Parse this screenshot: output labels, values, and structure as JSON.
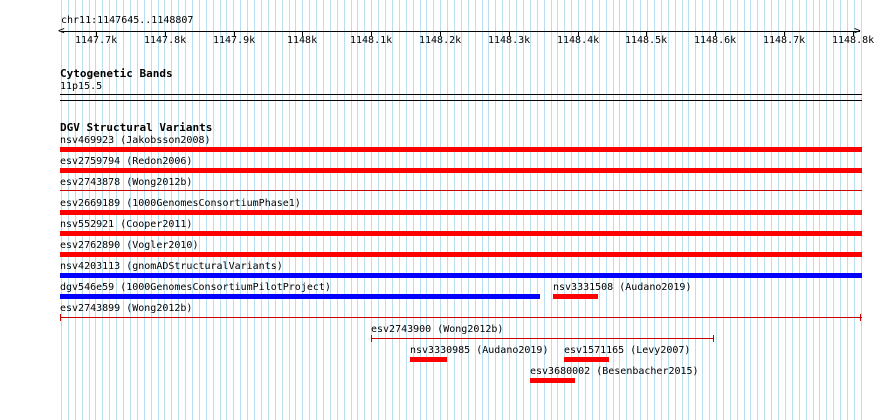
{
  "ruler": {
    "position": "chr11:1147645..1148807",
    "ticks": [
      "1147.7k",
      "1147.8k",
      "1147.9k",
      "1148k",
      "1148.1k",
      "1148.2k",
      "1148.3k",
      "1148.4k",
      "1148.5k",
      "1148.6k",
      "1148.7k",
      "1148.8k"
    ]
  },
  "cytobands": {
    "title": "Cytogenetic Bands",
    "band": "11p15.5"
  },
  "dgv": {
    "title": "DGV Structural Variants",
    "features": [
      {
        "label": "nsv469923 (Jakobsson2008)",
        "color": "#ff0000"
      },
      {
        "label": "esv2759794 (Redon2006)",
        "color": "#ff0000"
      },
      {
        "label": "esv2743878 (Wong2012b)",
        "color": "#cc0000"
      },
      {
        "label": "esv2669189 (1000GenomesConsortiumPhase1)",
        "color": "#ff0000"
      },
      {
        "label": "nsv552921 (Cooper2011)",
        "color": "#ff0000"
      },
      {
        "label": "esv2762890 (Vogler2010)",
        "color": "#ff0000"
      },
      {
        "label": "nsv4203113 (gnomADStructuralVariants)",
        "color": "#0000ff"
      },
      {
        "label": "dgv546e59 (1000GenomesConsortiumPilotProject)",
        "color": "#0000ff"
      },
      {
        "label": "nsv3331508 (Audano2019)",
        "color": "#ff0000"
      },
      {
        "label": "esv2743899 (Wong2012b)",
        "color": "#cc0000"
      },
      {
        "label": "esv2743900 (Wong2012b)",
        "color": "#cc0000"
      },
      {
        "label": "nsv3330985 (Audano2019)",
        "color": "#ff0000"
      },
      {
        "label": "esv1571165 (Levy2007)",
        "color": "#ff0000"
      },
      {
        "label": "esv3680002 (Besenbacher2015)",
        "color": "#ff0000"
      }
    ]
  }
}
